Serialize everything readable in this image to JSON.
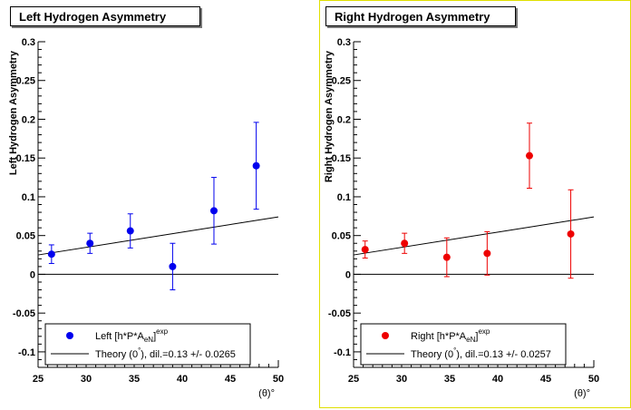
{
  "chart_data": [
    {
      "type": "scatter",
      "title": "Left Hydrogen Asymmetry",
      "ylabel": "Left Hydrogen Asymmetry",
      "xlabel": "(θ)°",
      "xlim": [
        25,
        50
      ],
      "ylim": [
        -0.12,
        0.3
      ],
      "xticks": [
        "25",
        "30",
        "35",
        "40",
        "45",
        "50"
      ],
      "yticks": [
        "-0.1",
        "-0.05",
        "0",
        "0.05",
        "0.1",
        "0.15",
        "0.2",
        "0.25",
        "0.3"
      ],
      "ytick_values": [
        -0.1,
        -0.05,
        0,
        0.05,
        0.1,
        0.15,
        0.2,
        0.25,
        0.3
      ],
      "series": [
        {
          "name": "Left [h*P*AeN]exp",
          "color": "#0000ee",
          "x": [
            26.4,
            30.4,
            34.6,
            39.0,
            43.3,
            47.7
          ],
          "y": [
            0.026,
            0.04,
            0.056,
            0.01,
            0.082,
            0.14
          ],
          "yerr": [
            0.012,
            0.013,
            0.022,
            0.03,
            0.043,
            0.056
          ]
        }
      ],
      "theory_line": {
        "x": [
          25,
          50
        ],
        "y": [
          0.025,
          0.074
        ]
      },
      "legend": {
        "points_text": "Left [h*P*AeN]exp",
        "points_main": "Left [h*P*A",
        "points_sub": "eN",
        "points_sup": "exp",
        "line_text": "Theory (0°), dil.=0.13 +/- 0.0265",
        "line_pre": "Theory (0",
        "line_post": "), dil.=0.13 +/- 0.0265",
        "placement": "bottom"
      }
    },
    {
      "type": "scatter",
      "title": "Right Hydrogen Asymmetry",
      "ylabel": "Right Hydrogen Asymmetry",
      "xlabel": "(θ)°",
      "xlim": [
        25,
        50
      ],
      "ylim": [
        -0.12,
        0.3
      ],
      "xticks": [
        "25",
        "30",
        "35",
        "40",
        "45",
        "50"
      ],
      "yticks": [
        "-0.1",
        "-0.05",
        "0",
        "0.05",
        "0.1",
        "0.15",
        "0.2",
        "0.25",
        "0.3"
      ],
      "ytick_values": [
        -0.1,
        -0.05,
        0,
        0.05,
        0.1,
        0.15,
        0.2,
        0.25,
        0.3
      ],
      "series": [
        {
          "name": "Right [h*P*AeN]exp",
          "color": "#ee0000",
          "x": [
            26.2,
            30.3,
            34.7,
            38.9,
            43.3,
            47.6
          ],
          "y": [
            0.032,
            0.04,
            0.022,
            0.027,
            0.153,
            0.052
          ],
          "yerr": [
            0.011,
            0.013,
            0.025,
            0.028,
            0.042,
            0.057
          ]
        }
      ],
      "theory_line": {
        "x": [
          25,
          50
        ],
        "y": [
          0.025,
          0.074
        ]
      },
      "legend": {
        "points_text": "Right [h*P*AeN]exp",
        "points_main": "Right [h*P*A",
        "points_sub": "eN",
        "points_sup": "exp",
        "line_text": "Theory (0°), dil.=0.13 +/- 0.0257",
        "line_pre": "Theory (0",
        "line_post": "), dil.=0.13 +/- 0.0257",
        "placement": "bottom"
      }
    }
  ]
}
